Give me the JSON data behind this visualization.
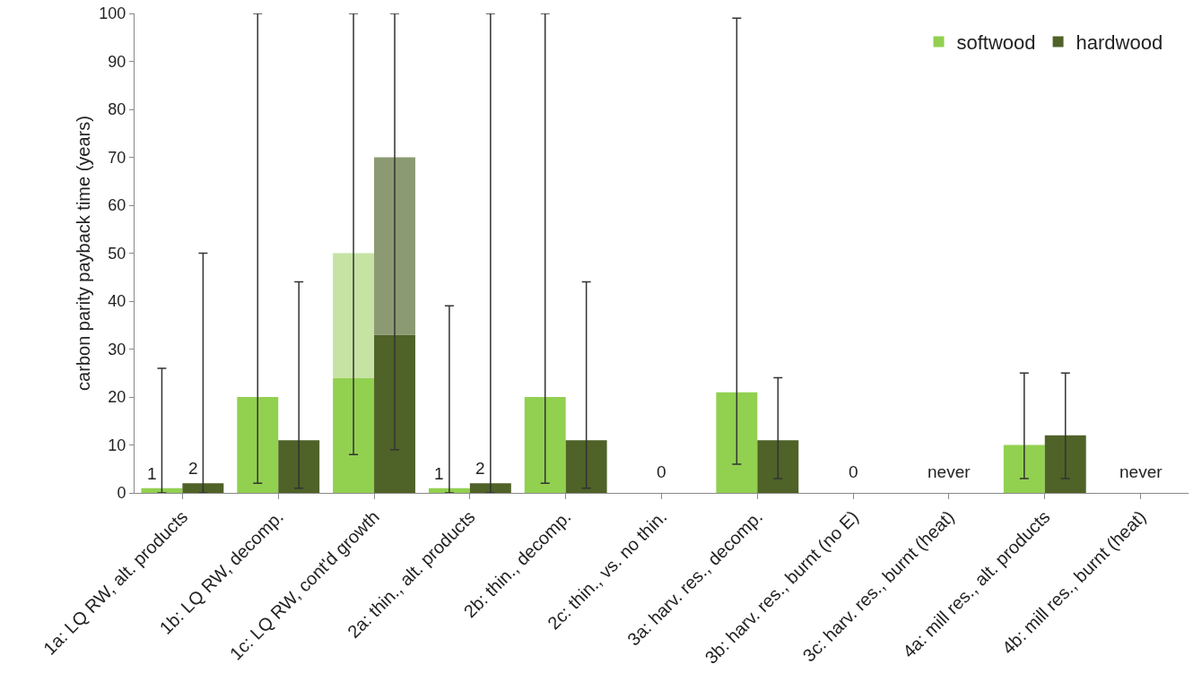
{
  "chart_data": {
    "type": "bar",
    "ylabel": "carbon parity payback time (years)",
    "categories": [
      "1a: LQ RW, alt. products",
      "1b: LQ RW, decomp.",
      "1c: LQ RW, cont'd growth",
      "2a: thin., alt. products",
      "2b: thin., decomp.",
      "2c: thin., vs. no thin.",
      "3a: harv. res., decomp.",
      "3b: harv. res., burnt (no E)",
      "3c: harv. res., burnt (heat)",
      "4a: mill res., alt. products",
      "4b: mill res., burnt (heat)"
    ],
    "series": [
      {
        "name": "softwood",
        "color": "#92d050",
        "values": [
          1,
          20,
          24,
          1,
          20,
          0,
          21,
          0,
          0,
          10,
          0
        ],
        "errors": [
          [
            0,
            26
          ],
          [
            2,
            100
          ],
          null,
          [
            0,
            39
          ],
          [
            2,
            100
          ],
          null,
          [
            6,
            99
          ],
          null,
          null,
          [
            3,
            25
          ],
          null
        ],
        "value_labels": [
          "1",
          null,
          null,
          "1",
          null,
          null,
          null,
          null,
          null,
          null,
          null
        ]
      },
      {
        "color": "#c6e3a4",
        "values": [
          null,
          null,
          26,
          null,
          null,
          null,
          null,
          null,
          null,
          null,
          null
        ],
        "base": [
          null,
          null,
          24,
          null,
          null,
          null,
          null,
          null,
          null,
          null,
          null
        ],
        "errors": [
          null,
          null,
          [
            8,
            100
          ],
          null,
          null,
          null,
          null,
          null,
          null,
          null,
          null
        ]
      },
      {
        "name": "hardwood",
        "color": "#4f6228",
        "values": [
          2,
          11,
          33,
          2,
          11,
          0,
          11,
          0,
          0,
          12,
          0
        ],
        "errors": [
          [
            0,
            50
          ],
          [
            1,
            44
          ],
          null,
          [
            0,
            100
          ],
          [
            1,
            44
          ],
          null,
          [
            3,
            24
          ],
          null,
          null,
          [
            3,
            25
          ],
          null
        ],
        "value_labels": [
          "2",
          null,
          null,
          "2",
          null,
          null,
          null,
          null,
          null,
          null,
          null
        ]
      },
      {
        "color": "#8b9a72",
        "values": [
          null,
          null,
          37,
          null,
          null,
          null,
          null,
          null,
          null,
          null,
          null
        ],
        "base": [
          null,
          null,
          33,
          null,
          null,
          null,
          null,
          null,
          null,
          null,
          null
        ],
        "errors": [
          null,
          null,
          [
            9,
            100
          ],
          null,
          null,
          null,
          null,
          null,
          null,
          null,
          null
        ]
      }
    ],
    "annotations": [
      {
        "text": "0",
        "x": "2c: thin., vs. no thin.",
        "y": 0
      },
      {
        "text": "0",
        "x": "3b: harv. res., burnt (no E)",
        "y": 0
      },
      {
        "text": "never",
        "x": "3c: harv. res., burnt (heat)",
        "y": 0
      },
      {
        "text": "never",
        "x": "4b: mill res., burnt (heat)",
        "y": 0
      }
    ],
    "ylim": [
      0,
      100
    ],
    "yticks": [
      0,
      10,
      20,
      30,
      40,
      50,
      60,
      70,
      80,
      90,
      100
    ],
    "grid": false,
    "legend": "top right"
  }
}
